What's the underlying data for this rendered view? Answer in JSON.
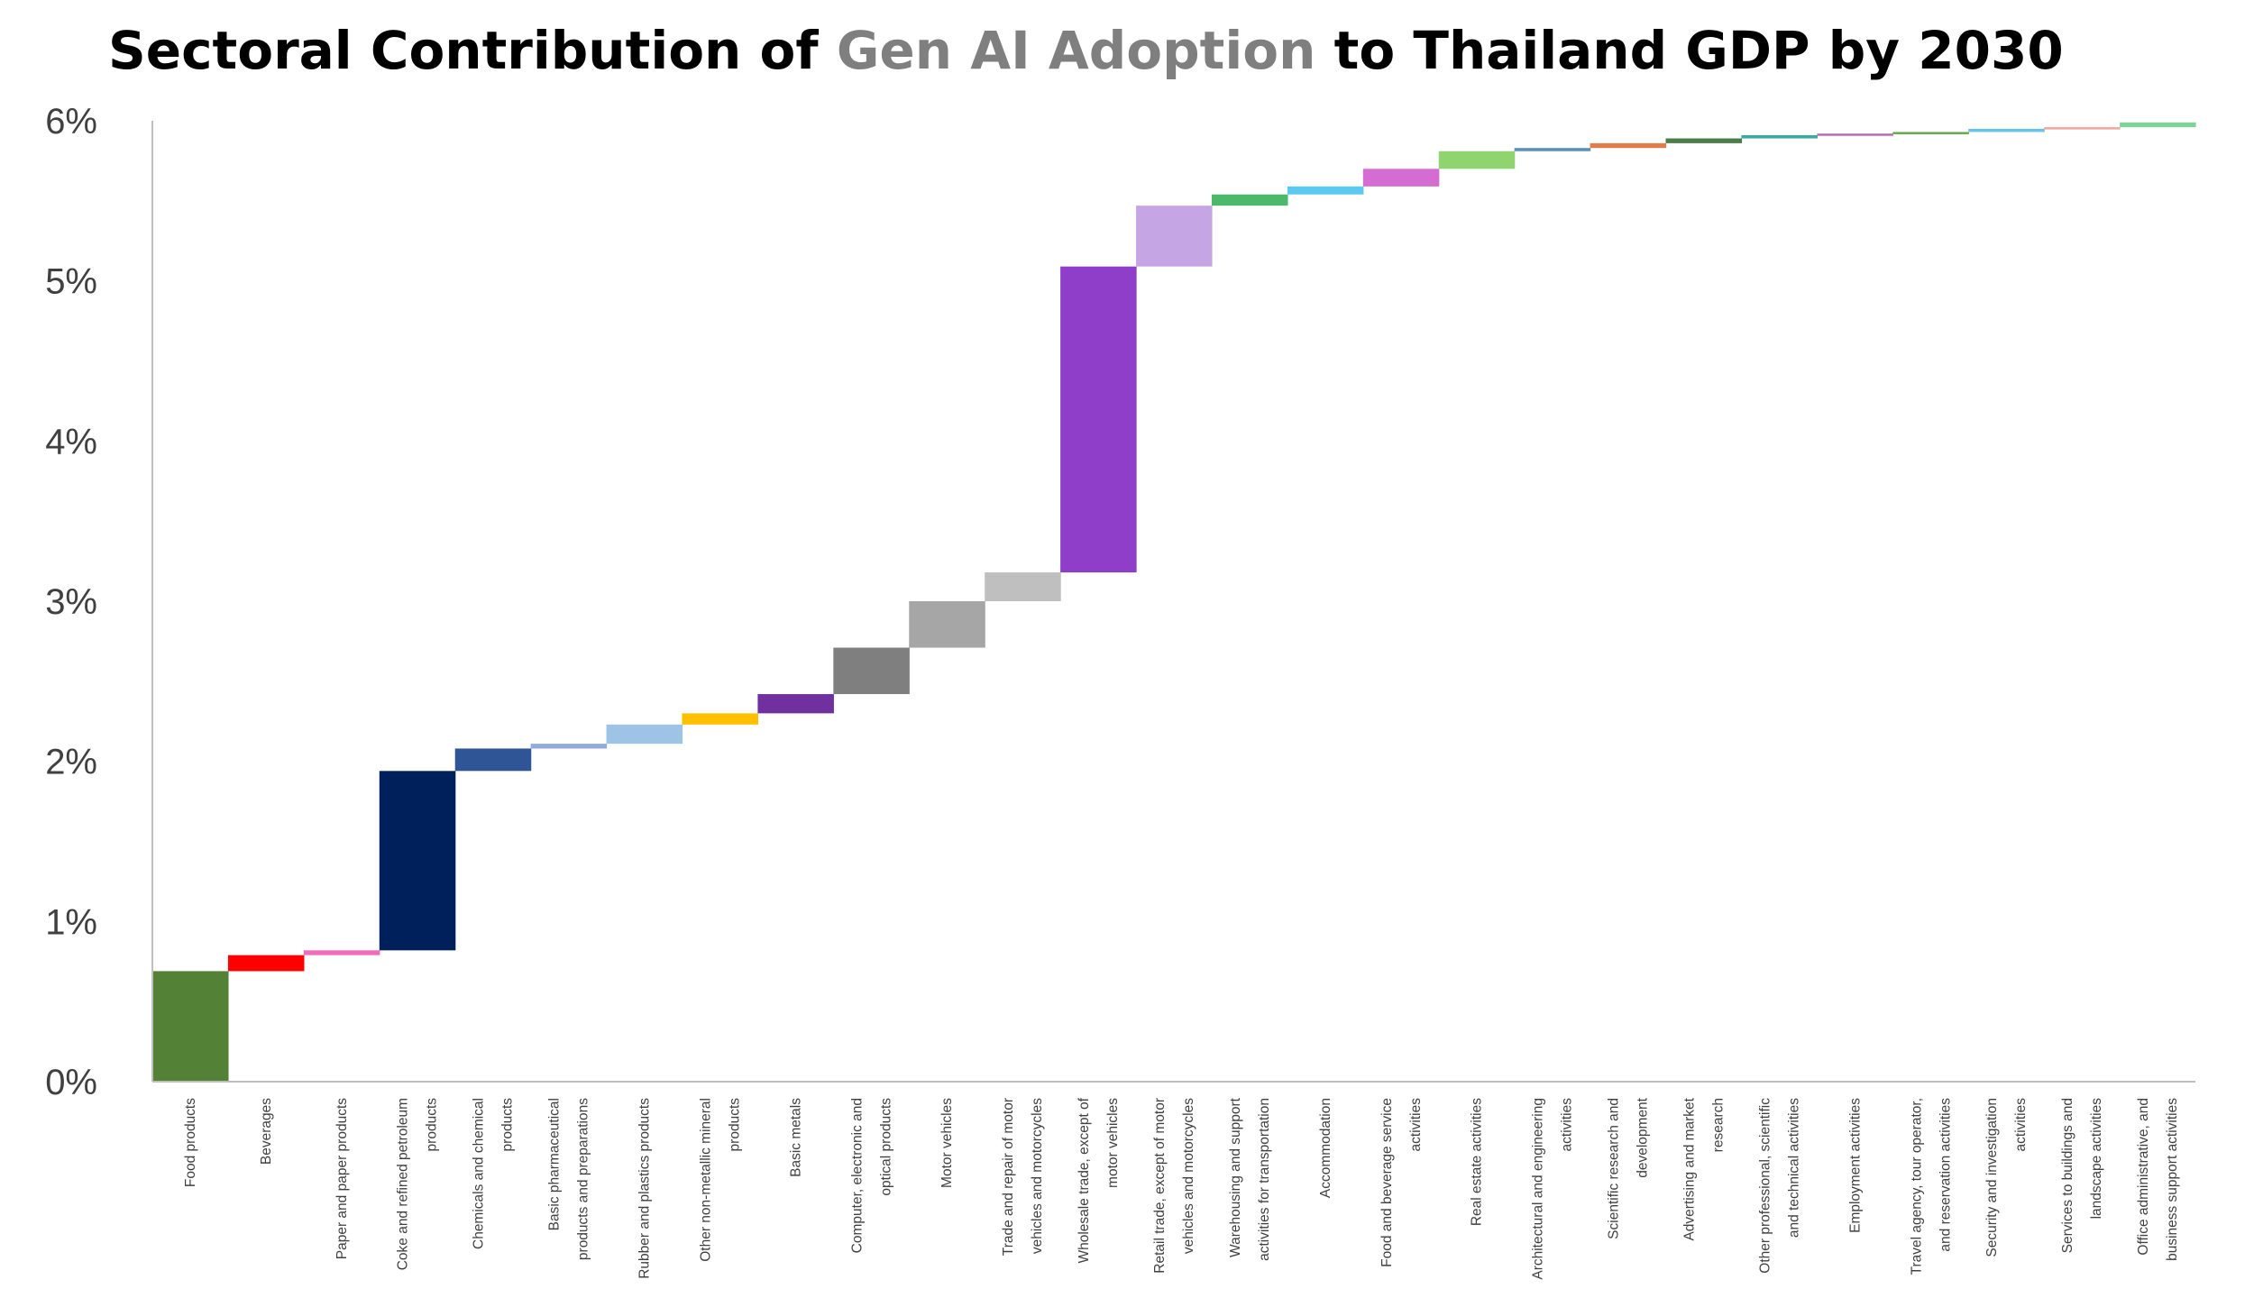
{
  "title": {
    "prefix": "Sectoral Contribution of ",
    "highlight": "Gen AI Adoption",
    "suffix": " to Thailand GDP by 2030",
    "highlight_color": "#7f7f7f"
  },
  "chart_data": {
    "type": "waterfall",
    "title": "Sectoral Contribution of Gen AI Adoption to Thailand GDP by 2030",
    "y_unit": "%",
    "ylim": [
      0,
      6
    ],
    "yticks": [
      "0%",
      "1%",
      "2%",
      "3%",
      "4%",
      "5%",
      "6%"
    ],
    "grid": false,
    "categories": [
      [
        "Food products"
      ],
      [
        "Beverages"
      ],
      [
        "Paper and paper products"
      ],
      [
        "Coke and refined petroleum",
        "products"
      ],
      [
        "Chemicals and chemical",
        "products"
      ],
      [
        "Basic pharmaceutical",
        "products and preparations"
      ],
      [
        "Rubber and plastics products"
      ],
      [
        "Other non-metallic mineral",
        "products"
      ],
      [
        "Basic metals"
      ],
      [
        "Computer, electronic and",
        "optical products"
      ],
      [
        "Motor vehicles"
      ],
      [
        "Trade and repair of motor",
        "vehicles and motorcycles"
      ],
      [
        "Wholesale trade, except of",
        "motor vehicles"
      ],
      [
        "Retail trade, except of motor",
        "vehicles and motorcycles"
      ],
      [
        "Warehousing and support",
        "activities for transportation"
      ],
      [
        "Accommodation"
      ],
      [
        "Food and beverage service",
        "activities"
      ],
      [
        "Real estate activities"
      ],
      [
        "Architectural and  engineering",
        "activities"
      ],
      [
        "Scientific research and",
        "development"
      ],
      [
        "Advertising and market",
        "research"
      ],
      [
        "Other professional, scientific",
        "and technical activities"
      ],
      [
        "Employment activities"
      ],
      [
        "Travel agency, tour operator,",
        "and  reservation  activities"
      ],
      [
        "Security and investigation",
        "activities"
      ],
      [
        "Services to buildings and",
        "landscape activities"
      ],
      [
        "Office administrative, and",
        "business support activities"
      ]
    ],
    "values": [
      0.69,
      0.1,
      0.03,
      1.12,
      0.14,
      0.03,
      0.12,
      0.07,
      0.12,
      0.29,
      0.29,
      0.18,
      1.91,
      0.38,
      0.07,
      0.05,
      0.11,
      0.11,
      0.02,
      0.03,
      0.03,
      0.02,
      0.01,
      0.01,
      0.02,
      0.01,
      0.03
    ],
    "colors": [
      "#538135",
      "#ff0000",
      "#f06bbd",
      "#00205b",
      "#2f5597",
      "#8faadc",
      "#9dc3e6",
      "#ffc000",
      "#7030a0",
      "#7f7f7f",
      "#a6a6a6",
      "#bfbfbf",
      "#8e3ec8",
      "#c6a5e4",
      "#4cb86a",
      "#5bc8f0",
      "#d56cd1",
      "#8fd46e",
      "#5b8fb8",
      "#e07b4a",
      "#4a7c47",
      "#3aa8a4",
      "#b86cb4",
      "#6aa84f",
      "#69c3e8",
      "#f2a59a",
      "#7ed39a"
    ]
  }
}
